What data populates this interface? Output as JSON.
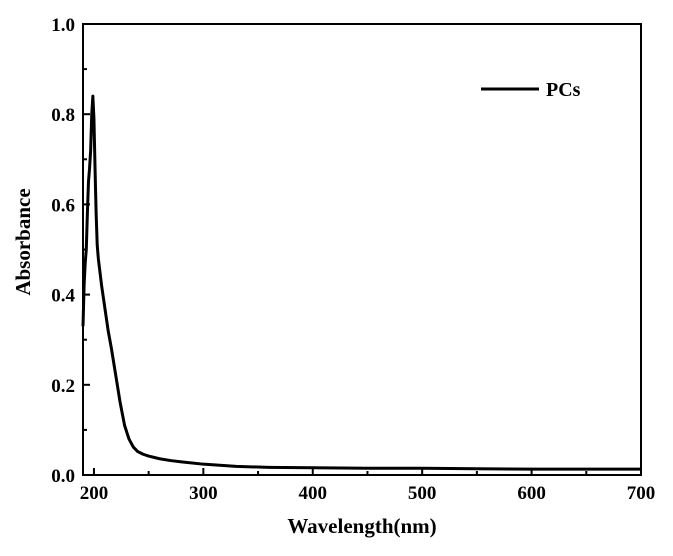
{
  "chart_data": {
    "type": "line",
    "xlabel": "Wavelength(nm)",
    "ylabel": "Absorbance",
    "xlim": [
      190,
      700
    ],
    "ylim": [
      0.0,
      1.0
    ],
    "x_ticks": [
      200,
      300,
      400,
      500,
      600,
      700
    ],
    "x_tick_labels": [
      "200",
      "300",
      "400",
      "500",
      "600",
      "700"
    ],
    "y_ticks": [
      0.0,
      0.2,
      0.4,
      0.6,
      0.8,
      1.0
    ],
    "y_tick_labels": [
      "0.0",
      "0.2",
      "0.4",
      "0.6",
      "0.8",
      "1.0"
    ],
    "grid": false,
    "legend_position": "top-right",
    "line_color": "#000000",
    "series": [
      {
        "name": "PCs",
        "x": [
          190,
          191,
          192,
          193,
          194,
          195,
          196,
          197,
          198,
          199,
          200,
          201,
          202,
          203,
          204,
          205,
          207,
          210,
          213,
          216,
          220,
          224,
          228,
          232,
          236,
          240,
          245,
          250,
          260,
          270,
          280,
          300,
          330,
          360,
          400,
          450,
          500,
          550,
          600,
          650,
          700
        ],
        "y": [
          0.33,
          0.42,
          0.47,
          0.5,
          0.58,
          0.65,
          0.68,
          0.72,
          0.8,
          0.84,
          0.79,
          0.68,
          0.58,
          0.51,
          0.48,
          0.46,
          0.42,
          0.37,
          0.32,
          0.28,
          0.22,
          0.16,
          0.11,
          0.08,
          0.062,
          0.052,
          0.046,
          0.042,
          0.036,
          0.032,
          0.029,
          0.024,
          0.019,
          0.017,
          0.016,
          0.015,
          0.015,
          0.014,
          0.013,
          0.013,
          0.013
        ]
      }
    ]
  }
}
